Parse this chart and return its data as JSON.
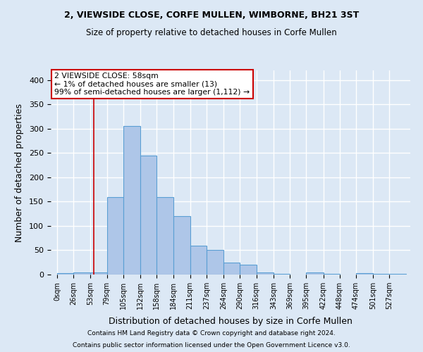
{
  "title1": "2, VIEWSIDE CLOSE, CORFE MULLEN, WIMBORNE, BH21 3ST",
  "title2": "Size of property relative to detached houses in Corfe Mullen",
  "xlabel": "Distribution of detached houses by size in Corfe Mullen",
  "ylabel": "Number of detached properties",
  "footnote1": "Contains HM Land Registry data © Crown copyright and database right 2024.",
  "footnote2": "Contains public sector information licensed under the Open Government Licence v3.0.",
  "bar_color": "#aec6e8",
  "bar_edge_color": "#5a9fd4",
  "background_color": "#dce8f5",
  "grid_color": "#ffffff",
  "annotation_text": "2 VIEWSIDE CLOSE: 58sqm\n← 1% of detached houses are smaller (13)\n99% of semi-detached houses are larger (1,112) →",
  "vline_x": 58,
  "vline_color": "#cc0000",
  "annotation_box_color": "#ffffff",
  "annotation_box_edge": "#cc0000",
  "ylim": [
    0,
    420
  ],
  "xlim": [
    -10,
    560
  ],
  "bins": [
    0,
    26,
    53,
    79,
    105,
    132,
    158,
    184,
    211,
    237,
    264,
    290,
    316,
    343,
    369,
    395,
    422,
    448,
    474,
    501,
    527,
    553
  ],
  "bin_labels": [
    "0sqm",
    "26sqm",
    "53sqm",
    "79sqm",
    "105sqm",
    "132sqm",
    "158sqm",
    "184sqm",
    "211sqm",
    "237sqm",
    "264sqm",
    "290sqm",
    "316sqm",
    "343sqm",
    "369sqm",
    "395sqm",
    "422sqm",
    "448sqm",
    "474sqm",
    "501sqm",
    "527sqm"
  ],
  "bar_heights": [
    3,
    5,
    5,
    160,
    305,
    245,
    160,
    120,
    60,
    50,
    25,
    20,
    5,
    2,
    0,
    5,
    2,
    0,
    3,
    2,
    2
  ],
  "yticks": [
    0,
    50,
    100,
    150,
    200,
    250,
    300,
    350,
    400
  ]
}
